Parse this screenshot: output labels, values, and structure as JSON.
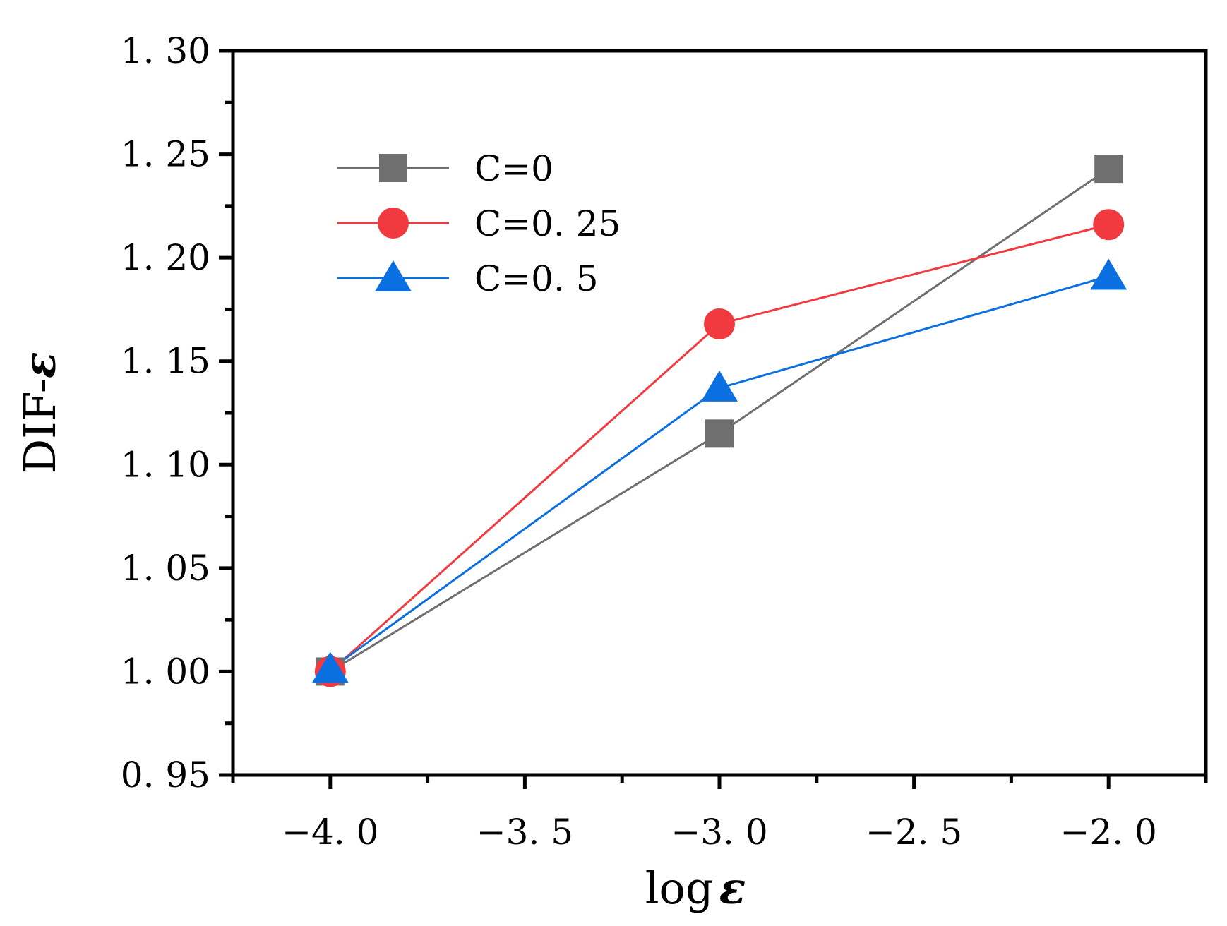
{
  "chart_data": {
    "type": "line",
    "title": "",
    "xlabel": "log ε",
    "xlabel_parts": {
      "prefix": "log",
      "symbol": "ε"
    },
    "ylabel": "DIF-ε",
    "ylabel_parts": {
      "prefix": "DIF-",
      "symbol": "ε"
    },
    "xlim": [
      -4.25,
      -1.75
    ],
    "ylim": [
      0.95,
      1.3
    ],
    "xticks": [
      -4.0,
      -3.5,
      -3.0,
      -2.5,
      -2.0
    ],
    "xtick_labels": [
      "−4. 0",
      "−3. 5",
      "−3. 0",
      "−2. 5",
      "−2. 0"
    ],
    "yticks": [
      0.95,
      1.0,
      1.05,
      1.1,
      1.15,
      1.2,
      1.25,
      1.3
    ],
    "ytick_labels": [
      "0. 95",
      "1. 00",
      "1. 05",
      "1. 10",
      "1. 15",
      "1. 20",
      "1. 25",
      "1. 30"
    ],
    "grid": false,
    "legend_position": "top-left",
    "x": [
      -4.0,
      -3.0,
      -2.0
    ],
    "series": [
      {
        "name": "C=0",
        "label": "C=0",
        "color": "#6f6f6f",
        "marker": "square",
        "values": [
          1.0,
          1.115,
          1.243
        ]
      },
      {
        "name": "C=0.25",
        "label": "C=0. 25",
        "color": "#f03a3f",
        "marker": "circle",
        "values": [
          1.0,
          1.168,
          1.216
        ]
      },
      {
        "name": "C=0.5",
        "label": "C=0. 5",
        "color": "#0a6fe0",
        "marker": "triangle",
        "values": [
          1.001,
          1.137,
          1.191
        ]
      }
    ]
  }
}
